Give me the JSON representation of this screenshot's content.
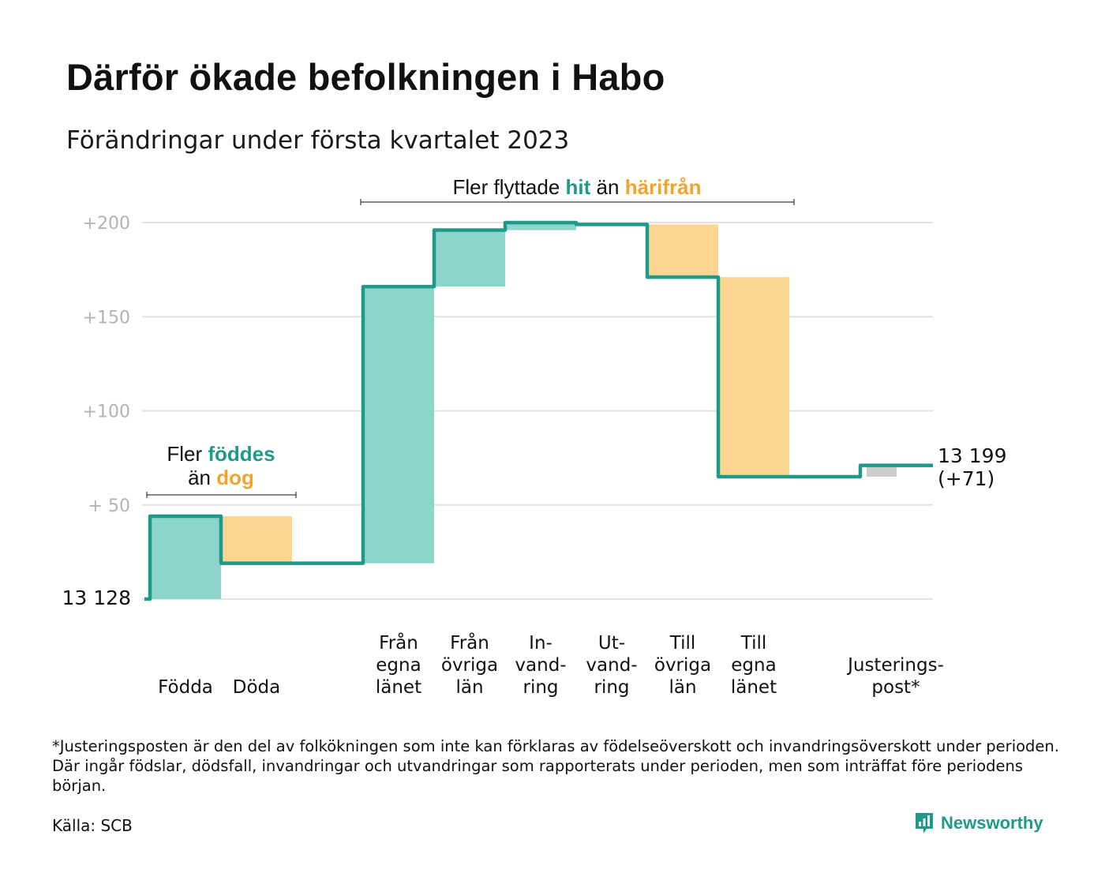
{
  "title": "Därför ökade befolkningen i Habo",
  "subtitle": "Förändringar under första kvartalet 2023",
  "footnote": "*Justeringsposten är den del av folkökningen som inte kan förklaras av födelseöverskott och invandringsöverskott under perioden. Där ingår födslar, dödsfall, invandringar och utvandringar som rapporterats under perioden, men som inträffat före periodens början.",
  "source": "Källa: SCB",
  "brand": "Newsworthy",
  "annotations": {
    "births": {
      "pre": "Fler ",
      "pos": "föddes",
      "line2_pre": "än ",
      "neg": "dog"
    },
    "migration": {
      "pre": "Fler flyttade ",
      "pos": "hit",
      "mid": " än ",
      "neg": "härifrån"
    }
  },
  "colors": {
    "line": "#1f9a8a",
    "increase": "#8dd5cc",
    "decrease": "#fad690",
    "adjustment": "#cccccc",
    "grid": "#e3e3e3",
    "positive_text": "#1f9a8a",
    "negative_text": "#f1a52f"
  },
  "chart_data": {
    "type": "waterfall",
    "baseline": 13128,
    "baseline_label": "13 128",
    "end_label": "13 199",
    "end_change_label": "(+71)",
    "ylim": [
      0,
      200
    ],
    "yticks": [
      {
        "value": 200,
        "label": "+200"
      },
      {
        "value": 150,
        "label": "+150"
      },
      {
        "value": 100,
        "label": "+100"
      },
      {
        "value": 50,
        "label": "+ 50"
      }
    ],
    "grid": true,
    "steps": [
      {
        "label": [
          "",
          "",
          "Födda"
        ],
        "delta": 44,
        "kind": "increase"
      },
      {
        "label": [
          "",
          "",
          "Döda"
        ],
        "delta": -25,
        "kind": "decrease"
      },
      {
        "label": [],
        "delta": 0,
        "kind": "gap"
      },
      {
        "label": [
          "Från",
          "egna",
          "länet"
        ],
        "delta": 147,
        "kind": "increase"
      },
      {
        "label": [
          "Från",
          "övriga",
          "län"
        ],
        "delta": 30,
        "kind": "increase"
      },
      {
        "label": [
          "In-",
          "vand-",
          "ring"
        ],
        "delta": 4,
        "kind": "increase"
      },
      {
        "label": [
          "Ut-",
          "vand-",
          "ring"
        ],
        "delta": -1,
        "kind": "decrease"
      },
      {
        "label": [
          "Till",
          "övriga",
          "län"
        ],
        "delta": -28,
        "kind": "decrease"
      },
      {
        "label": [
          "Till",
          "egna",
          "länet"
        ],
        "delta": -106,
        "kind": "decrease"
      },
      {
        "label": [],
        "delta": 0,
        "kind": "gap"
      },
      {
        "label": [
          "Justerings-",
          "post*"
        ],
        "delta": 6,
        "kind": "adjustment"
      }
    ]
  }
}
